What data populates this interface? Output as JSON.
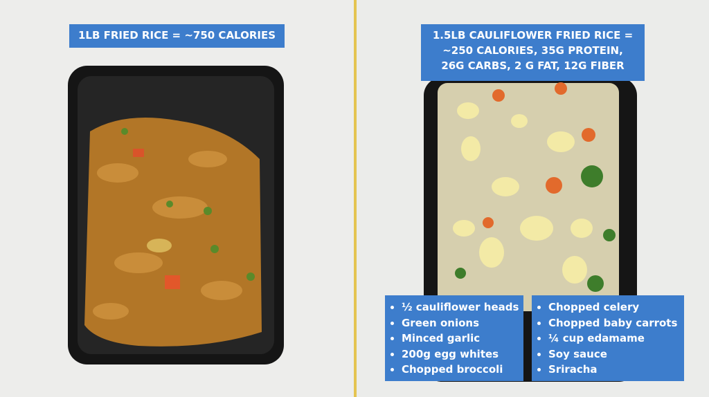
{
  "left_label": "1LB FRIED RICE = ~750 CALORIES",
  "right_label": [
    "1.5LB CAULIFLOWER FRIED RICE =",
    "~250 CALORIES, 35G PROTEIN,",
    "26G CARBS, 2 G FAT, 12G FIBER"
  ],
  "ingredients_left": [
    "½ cauliflower heads",
    "Green onions",
    "Minced garlic",
    "200g egg whites",
    "Chopped broccoli"
  ],
  "ingredients_right": [
    "Chopped celery",
    "Chopped baby carrots",
    "¼ cup edamame",
    "Soy sauce",
    "Sriracha"
  ]
}
